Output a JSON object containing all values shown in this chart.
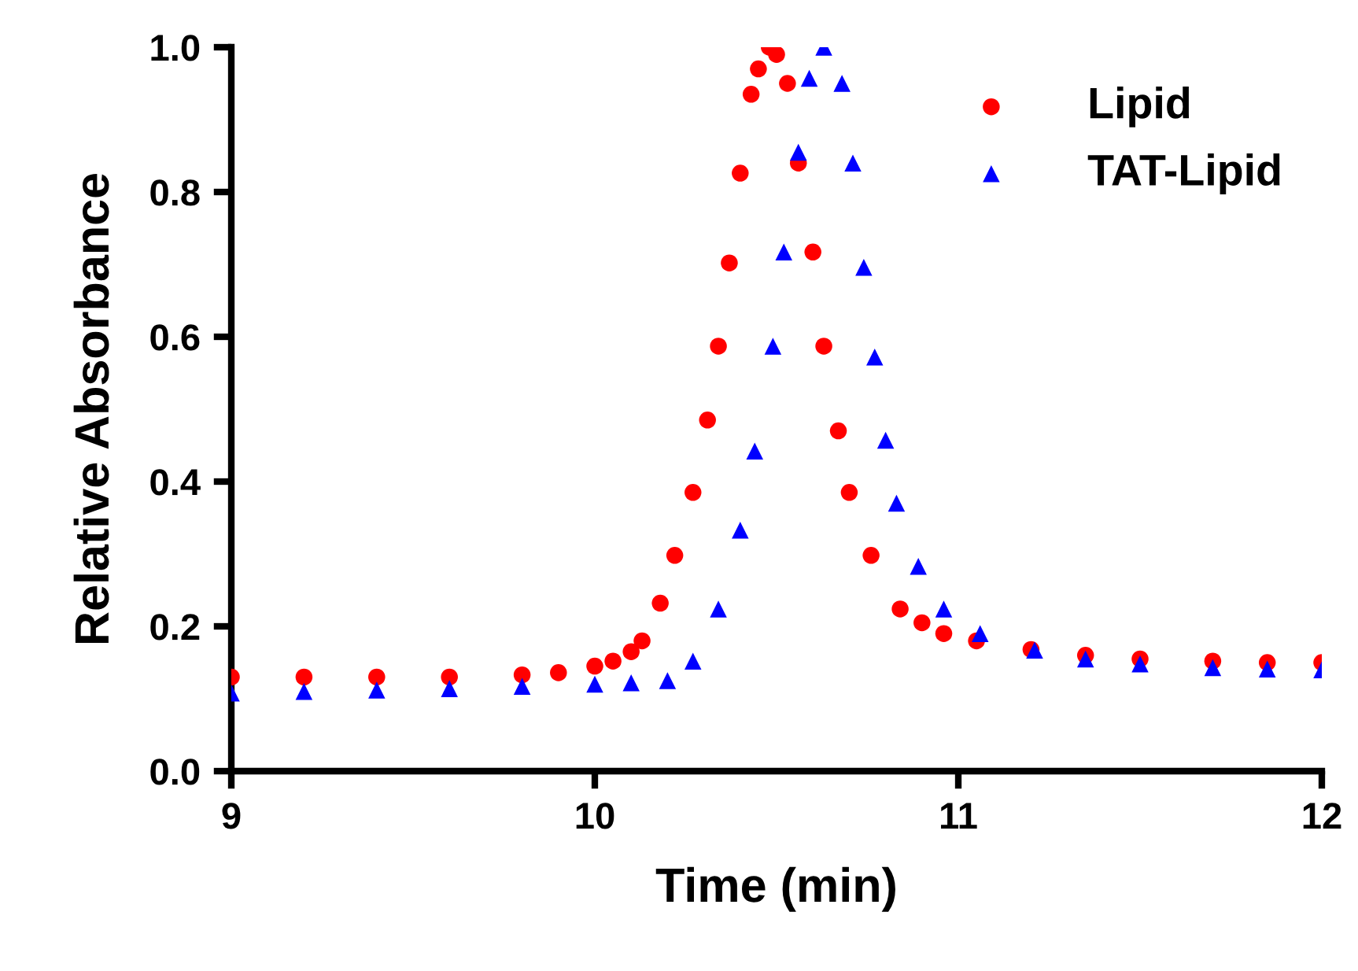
{
  "chart_data": {
    "type": "scatter",
    "xlabel": "Time (min)",
    "ylabel": "Relative Absorbance",
    "xlim": [
      9,
      12
    ],
    "ylim": [
      0,
      1.0
    ],
    "xticks": [
      9,
      10,
      11,
      12
    ],
    "yticks": [
      {
        "value": 0,
        "label": "0.0"
      },
      {
        "value": 0.2,
        "label": "0.2"
      },
      {
        "value": 0.4,
        "label": "0.4"
      },
      {
        "value": 0.6,
        "label": "0.6"
      },
      {
        "value": 0.8,
        "label": "0.8"
      },
      {
        "value": 1,
        "label": "1.0"
      }
    ],
    "grid": false,
    "legend": "top right",
    "series": [
      {
        "name": "Lipid",
        "color": "#ff0000",
        "marker": "circle",
        "x": [
          9.0,
          9.2,
          9.4,
          9.6,
          9.8,
          9.9,
          10.0,
          10.05,
          10.1,
          10.13,
          10.18,
          10.22,
          10.27,
          10.31,
          10.34,
          10.37,
          10.4,
          10.43,
          10.45,
          10.48,
          10.5,
          10.53,
          10.56,
          10.6,
          10.63,
          10.67,
          10.7,
          10.76,
          10.84,
          10.9,
          10.96,
          11.05,
          11.2,
          11.35,
          11.5,
          11.7,
          11.85,
          12.0
        ],
        "values": [
          0.13,
          0.13,
          0.13,
          0.13,
          0.133,
          0.136,
          0.145,
          0.152,
          0.165,
          0.18,
          0.232,
          0.298,
          0.385,
          0.485,
          0.587,
          0.702,
          0.826,
          0.935,
          0.97,
          1.0,
          0.99,
          0.95,
          0.84,
          0.717,
          0.587,
          0.47,
          0.385,
          0.298,
          0.224,
          0.205,
          0.19,
          0.18,
          0.168,
          0.16,
          0.155,
          0.152,
          0.15,
          0.15
        ]
      },
      {
        "name": "TAT-Lipid",
        "color": "#0000ff",
        "marker": "triangle",
        "x": [
          9.0,
          9.2,
          9.4,
          9.6,
          9.8,
          10.0,
          10.1,
          10.2,
          10.27,
          10.34,
          10.4,
          10.44,
          10.49,
          10.52,
          10.56,
          10.59,
          10.63,
          10.68,
          10.71,
          10.74,
          10.77,
          10.8,
          10.83,
          10.89,
          10.96,
          11.06,
          11.21,
          11.35,
          11.5,
          11.7,
          11.85,
          12.0
        ],
        "values": [
          0.108,
          0.11,
          0.112,
          0.114,
          0.117,
          0.12,
          0.122,
          0.125,
          0.152,
          0.224,
          0.333,
          0.442,
          0.587,
          0.717,
          0.855,
          0.957,
          1.0,
          0.95,
          0.84,
          0.696,
          0.572,
          0.457,
          0.37,
          0.283,
          0.224,
          0.19,
          0.167,
          0.155,
          0.148,
          0.143,
          0.141,
          0.14
        ]
      }
    ]
  }
}
